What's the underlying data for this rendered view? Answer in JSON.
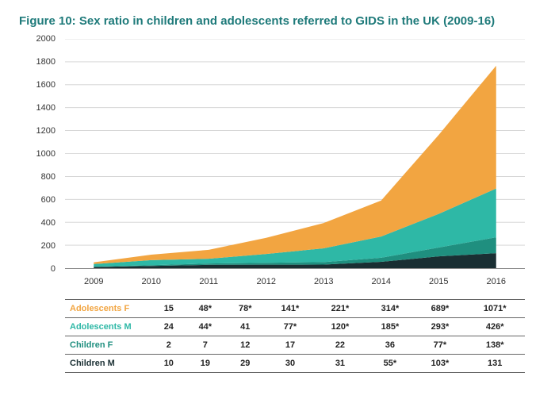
{
  "chart": {
    "type": "area",
    "title": "Figure 10: Sex ratio in children and adolescents referred to GIDS in the UK (2009-16)",
    "title_color": "#1e7a7a",
    "title_fontsize": 15,
    "background_color": "#ffffff",
    "categories": [
      "2009",
      "2010",
      "2011",
      "2012",
      "2013",
      "2014",
      "2015",
      "2016"
    ],
    "ylim": [
      0,
      2000
    ],
    "ytick_step": 200,
    "yticks": [
      "0",
      "200",
      "400",
      "600",
      "800",
      "1000",
      "1200",
      "1400",
      "1600",
      "1800",
      "2000"
    ],
    "grid_color": "#d0d0d0",
    "axis_color": "#888888",
    "label_fontsize": 11,
    "series": [
      {
        "name": "Children M",
        "label": "Children M",
        "color": "#1a2f33",
        "values": [
          10,
          19,
          29,
          30,
          31,
          55,
          103,
          131
        ],
        "display": [
          "10",
          "19",
          "29",
          "30",
          "31",
          "55*",
          "103*",
          "131"
        ]
      },
      {
        "name": "Children F",
        "label": "Children F",
        "color": "#1f8f7f",
        "values": [
          2,
          7,
          12,
          17,
          22,
          36,
          77,
          138
        ],
        "display": [
          "2",
          "7",
          "12",
          "17",
          "22",
          "36",
          "77*",
          "138*"
        ]
      },
      {
        "name": "Adolescents M",
        "label": "Adolescents M",
        "color": "#2eb8a6",
        "values": [
          24,
          44,
          41,
          77,
          120,
          185,
          293,
          426
        ],
        "display": [
          "24",
          "44*",
          "41",
          "77*",
          "120*",
          "185*",
          "293*",
          "426*"
        ]
      },
      {
        "name": "Adolescents F",
        "label": "Adolescents F",
        "color": "#f2a541",
        "values": [
          15,
          48,
          78,
          141,
          221,
          314,
          689,
          1071
        ],
        "display": [
          "15",
          "48*",
          "78*",
          "141*",
          "221*",
          "314*",
          "689*",
          "1071*"
        ]
      }
    ],
    "table_order": [
      "Adolescents F",
      "Adolescents M",
      "Children F",
      "Children M"
    ],
    "table_label_colors": {
      "Adolescents F": "#f2a541",
      "Adolescents M": "#2eb8a6",
      "Children F": "#1f8f7f",
      "Children M": "#1a2f33"
    }
  }
}
